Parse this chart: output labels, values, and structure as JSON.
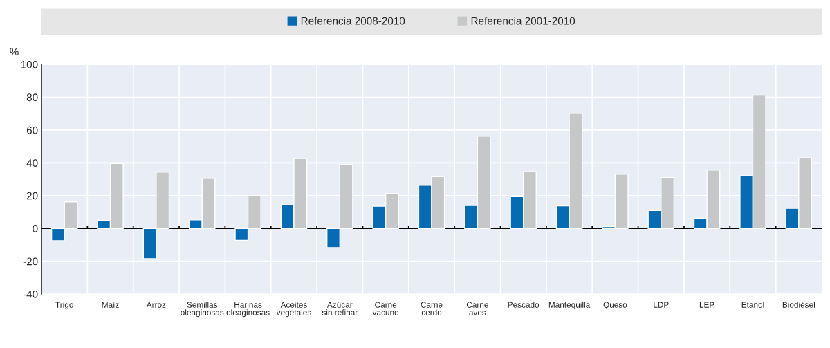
{
  "chart_data": {
    "type": "bar",
    "ylabel": "%",
    "categories": [
      "Trigo",
      "Maíz",
      "Arroz",
      "Semillas\noleaginosas",
      "Harinas\noleaginosas",
      "Aceites\nvegetales",
      "Azúcar\nsin refinar",
      "Carne\nvacuno",
      "Carne\ncerdo",
      "Carne\naves",
      "Pescado",
      "Mantequilla",
      "Queso",
      "LDP",
      "LEP",
      "Etanol",
      "Biodiésel"
    ],
    "series": [
      {
        "name": "Referencia 2008-2010",
        "color": "#066bb5",
        "values": [
          -7.5,
          4.9,
          -18.5,
          5.2,
          -7.3,
          14.3,
          -11.7,
          13.6,
          26.3,
          14,
          19.3,
          13.8,
          1.1,
          10.9,
          6.1,
          32,
          12.3
        ]
      },
      {
        "name": "Referencia 2001-2010",
        "color": "#c6c7c9",
        "values": [
          16.2,
          39.6,
          34.3,
          30.5,
          20,
          42.6,
          38.9,
          21.3,
          31.6,
          56.2,
          34.6,
          70.2,
          33.1,
          31,
          35.6,
          81.2,
          43
        ]
      }
    ],
    "ylim": [
      -40,
      100
    ],
    "yticks": [
      -40,
      -20,
      0,
      20,
      40,
      60,
      80,
      100
    ],
    "grid": true,
    "legend": "top"
  }
}
